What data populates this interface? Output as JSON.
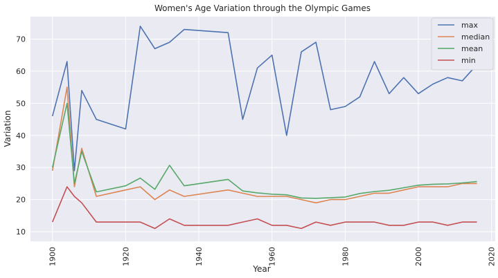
{
  "chart_data": {
    "type": "line",
    "title": "Women's Age Variation through the Olympic Games",
    "xlabel": "Year",
    "ylabel": "Variation",
    "xlim": [
      1894,
      2021
    ],
    "ylim": [
      7,
      77
    ],
    "xticks": [
      1900,
      1920,
      1940,
      1960,
      1980,
      2000,
      2020
    ],
    "yticks": [
      10,
      20,
      30,
      40,
      50,
      60,
      70
    ],
    "grid": true,
    "legend_position": "top-right",
    "x": [
      1900,
      1904,
      1906,
      1908,
      1912,
      1920,
      1924,
      1928,
      1932,
      1936,
      1948,
      1952,
      1956,
      1960,
      1964,
      1968,
      1972,
      1976,
      1980,
      1984,
      1988,
      1992,
      1996,
      2000,
      2004,
      2008,
      2012,
      2016
    ],
    "series": [
      {
        "name": "max",
        "color": "#4c72b0",
        "values": [
          46,
          63,
          29,
          54,
          45,
          42,
          74,
          67,
          69,
          73,
          72,
          45,
          61,
          65,
          40,
          66,
          69,
          48,
          49,
          52,
          63,
          53,
          58,
          53,
          56,
          58,
          57,
          62
        ]
      },
      {
        "name": "median",
        "color": "#dd8452",
        "values": [
          29,
          55,
          24,
          36,
          21,
          23,
          24,
          20,
          23,
          21,
          23,
          22,
          21,
          21,
          21,
          20,
          19,
          20,
          20,
          21,
          22,
          22,
          23,
          24,
          24,
          24,
          25,
          25
        ]
      },
      {
        "name": "mean",
        "color": "#55a868",
        "values": [
          30,
          50,
          25,
          35,
          22.4,
          24.3,
          26.7,
          23.2,
          30.7,
          24.3,
          26.3,
          22.7,
          22.1,
          21.7,
          21.5,
          20.5,
          20.4,
          20.6,
          20.8,
          21.9,
          22.5,
          22.9,
          23.7,
          24.5,
          24.8,
          24.9,
          25.2,
          25.6
        ]
      },
      {
        "name": "min",
        "color": "#c44e52",
        "values": [
          13,
          24,
          21,
          19,
          13,
          13,
          13,
          11,
          14,
          12,
          12,
          13,
          14,
          12,
          12,
          11,
          13,
          12,
          13,
          13,
          13,
          12,
          12,
          13,
          13,
          12,
          13,
          13
        ]
      }
    ]
  }
}
